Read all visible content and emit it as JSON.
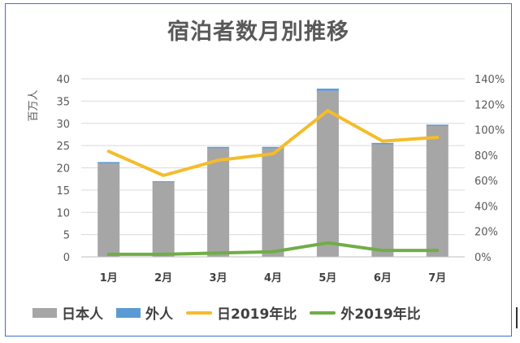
{
  "chart_data": {
    "type": "bar",
    "title": "宿泊者数月別推移",
    "ylabel": "百万人",
    "categories": [
      "1月",
      "2月",
      "3月",
      "4月",
      "5月",
      "6月",
      "7月"
    ],
    "ylim": [
      0,
      40
    ],
    "y_ticks": [
      "0",
      "5",
      "10",
      "15",
      "20",
      "25",
      "30",
      "35",
      "40"
    ],
    "y2lim": [
      0,
      140
    ],
    "y2_ticks": [
      "0%",
      "20%",
      "40%",
      "60%",
      "80%",
      "100%",
      "120%",
      "140%"
    ],
    "stacked": true,
    "grid": true,
    "legend_position": "bottom",
    "series": [
      {
        "name": "日本人",
        "kind": "bar",
        "axis": "left",
        "color": "#a6a6a6",
        "values": [
          21.0,
          16.8,
          24.4,
          24.4,
          37.3,
          25.3,
          29.4
        ]
      },
      {
        "name": "外人",
        "kind": "bar",
        "axis": "left",
        "color": "#5b9bd5",
        "values": [
          0.3,
          0.2,
          0.3,
          0.3,
          0.5,
          0.3,
          0.3
        ]
      },
      {
        "name": "日2019年比",
        "kind": "line",
        "axis": "right",
        "color": "#f5bc2a",
        "values": [
          83,
          64,
          76,
          81,
          115,
          91,
          94
        ]
      },
      {
        "name": "外2019年比",
        "kind": "line",
        "axis": "right",
        "color": "#70ad47",
        "values": [
          2,
          2,
          3,
          4,
          11,
          5,
          5
        ]
      }
    ]
  }
}
